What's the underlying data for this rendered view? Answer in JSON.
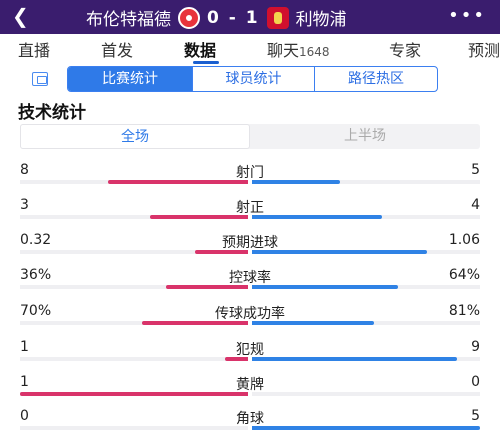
{
  "header": {
    "back_icon": "back-arrow-icon",
    "home_team": "布伦特福德",
    "score": "0 - 1",
    "away_team": "利物浦",
    "more_icon": "more-dots-icon"
  },
  "tabs": [
    {
      "label": "直播"
    },
    {
      "label": "首发"
    },
    {
      "label": "数据"
    },
    {
      "label": "聊天",
      "count": "1648"
    },
    {
      "label": "专家"
    },
    {
      "label": "预测"
    }
  ],
  "subtabs": [
    "比赛统计",
    "球员统计",
    "路径热区"
  ],
  "section_title": "技术统计",
  "period": {
    "full": "全场",
    "first_half": "上半场"
  },
  "colors": {
    "home": "#d9336a",
    "away": "#2f82e5",
    "header": "#3a1d6e"
  },
  "stats": [
    {
      "name": "射门",
      "home": "8",
      "away": "5",
      "home_share": 0.615,
      "away_share": 0.385
    },
    {
      "name": "射正",
      "home": "3",
      "away": "4",
      "home_share": 0.4286,
      "away_share": 0.5714
    },
    {
      "name": "预期进球",
      "home": "0.32",
      "away": "1.06",
      "home_share": 0.232,
      "away_share": 0.768
    },
    {
      "name": "控球率",
      "home": "36%",
      "away": "64%",
      "home_share": 0.36,
      "away_share": 0.64
    },
    {
      "name": "传球成功率",
      "home": "70%",
      "away": "81%",
      "home_share": 0.4635,
      "away_share": 0.5365
    },
    {
      "name": "犯规",
      "home": "1",
      "away": "9",
      "home_share": 0.1,
      "away_share": 0.9
    },
    {
      "name": "黄牌",
      "home": "1",
      "away": "0",
      "home_share": 1.0,
      "away_share": 0.0
    },
    {
      "name": "角球",
      "home": "0",
      "away": "5",
      "home_share": 0.0,
      "away_share": 1.0
    }
  ]
}
